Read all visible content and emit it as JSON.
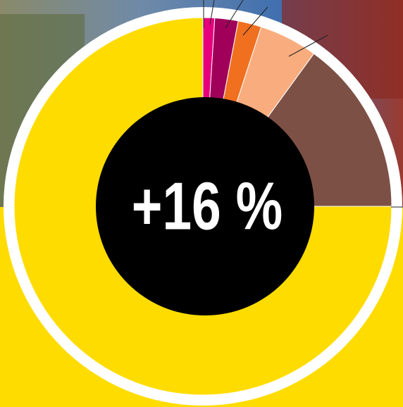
{
  "chart_data": {
    "type": "pie",
    "center_label": "+16 %",
    "values": [
      1,
      2,
      2,
      5,
      15,
      75
    ],
    "colors": [
      "#e6007e",
      "#a0005a",
      "#f07020",
      "#f9ad7f",
      "#7d5046",
      "#ffdc00"
    ]
  }
}
